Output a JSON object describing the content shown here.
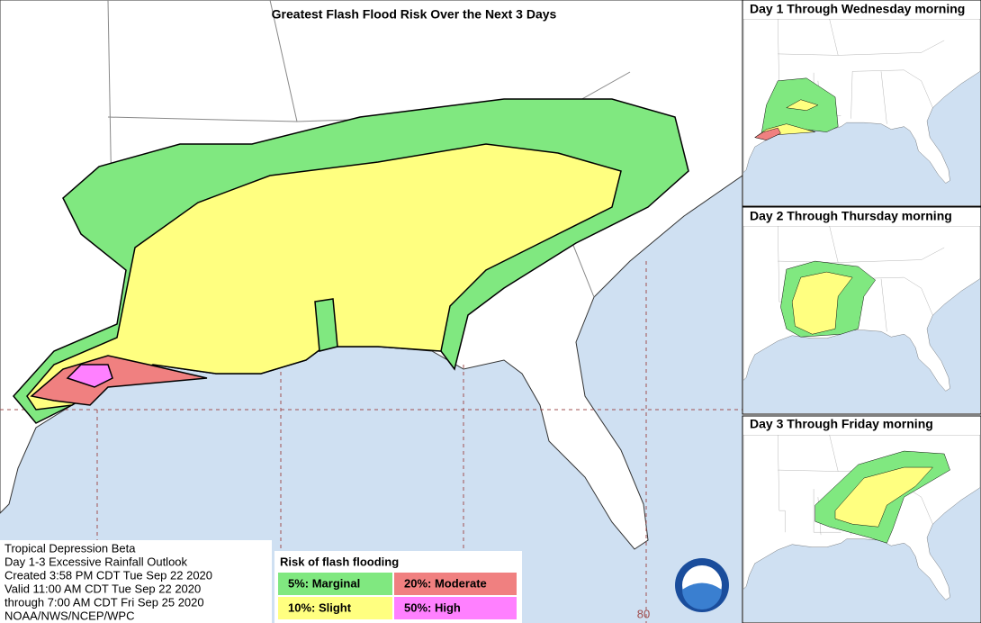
{
  "header": {
    "title": "Greatest Flash Flood Risk Over the Next 3 Days"
  },
  "panels": [
    {
      "title": "Day 1 Through Wednesday morning"
    },
    {
      "title": "Day 2 Through Thursday morning"
    },
    {
      "title": "Day 3 Through Friday morning"
    }
  ],
  "info": {
    "lines": [
      "Tropical Depression Beta",
      "Day 1-3 Excessive Rainfall Outlook",
      "Created 3:58 PM CDT Tue Sep 22 2020",
      "Valid 11:00 AM CDT Tue Sep 22 2020",
      "through 7:00 AM CDT Fri Sep 25 2020",
      "NOAA/NWS/NCEP/WPC"
    ]
  },
  "legend": {
    "title": "Risk of flash flooding",
    "items": [
      "5%: Marginal",
      "20%: Moderate",
      "10%: Slight",
      "50%: High"
    ]
  },
  "map": {
    "longitude_label": "80",
    "logo": "NOAA"
  }
}
